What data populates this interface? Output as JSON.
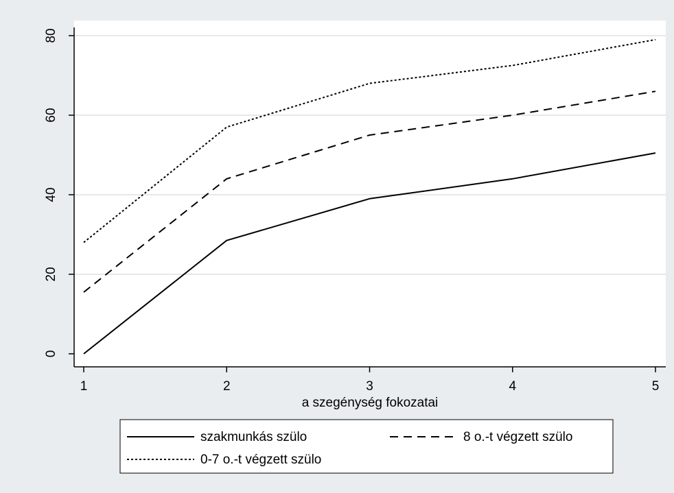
{
  "chart_data": {
    "type": "line",
    "xlabel": "a szegénység fokozatai",
    "ylabel": "",
    "x": [
      1,
      2,
      3,
      4,
      5
    ],
    "xticks": [
      "1",
      "2",
      "3",
      "4",
      "5"
    ],
    "yticks": [
      "0",
      "20",
      "40",
      "60",
      "80"
    ],
    "xlim": [
      1,
      5
    ],
    "ylim": [
      0,
      80
    ],
    "grid": "horizontal",
    "legend_position": "bottom",
    "series": [
      {
        "name": "szakmunkás szülo",
        "style": "solid",
        "color": "#000000",
        "values": [
          0,
          28.5,
          39,
          44,
          50.5
        ]
      },
      {
        "name": "8 o.-t végzett szülo",
        "style": "dashed",
        "color": "#000000",
        "values": [
          15.5,
          44,
          55,
          60,
          66
        ]
      },
      {
        "name": "0-7 o.-t végzett szülo",
        "style": "dotted",
        "color": "#000000",
        "values": [
          28,
          57,
          68,
          72.5,
          79
        ]
      }
    ]
  },
  "colors": {
    "background": "#e9edef",
    "plot_background": "#ffffff",
    "grid": "#e4e8ea",
    "line": "#000000"
  }
}
